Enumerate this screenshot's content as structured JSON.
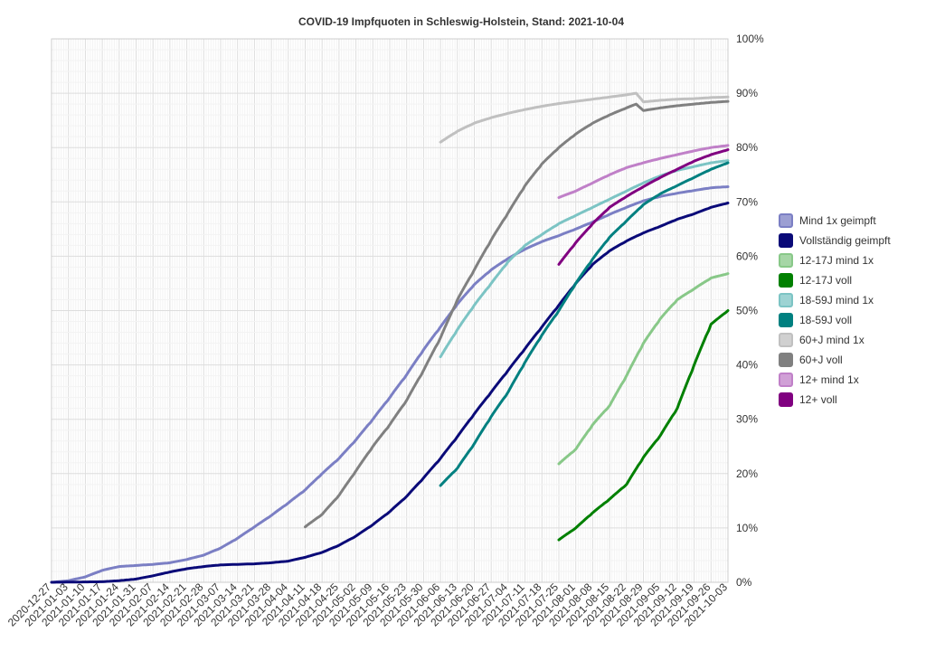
{
  "chart_data": {
    "type": "line",
    "title": "COVID-19 Impfquoten in Schleswig-Holstein, Stand: 2021-10-04",
    "x_start": "2020-12-27",
    "x_end": "2021-10-03",
    "x_ticks": [
      "2020-12-27",
      "2021-01-03",
      "2021-01-10",
      "2021-01-17",
      "2021-01-24",
      "2021-01-31",
      "2021-02-07",
      "2021-02-14",
      "2021-02-21",
      "2021-02-28",
      "2021-03-07",
      "2021-03-14",
      "2021-03-21",
      "2021-03-28",
      "2021-04-04",
      "2021-04-11",
      "2021-04-18",
      "2021-04-25",
      "2021-05-02",
      "2021-05-09",
      "2021-05-16",
      "2021-05-23",
      "2021-05-30",
      "2021-06-06",
      "2021-06-13",
      "2021-06-20",
      "2021-06-27",
      "2021-07-04",
      "2021-07-11",
      "2021-07-18",
      "2021-07-25",
      "2021-08-01",
      "2021-08-08",
      "2021-08-15",
      "2021-08-22",
      "2021-08-29",
      "2021-09-05",
      "2021-09-12",
      "2021-09-19",
      "2021-09-26",
      "2021-10-03"
    ],
    "y_ticks": [
      "0%",
      "10%",
      "20%",
      "30%",
      "40%",
      "50%",
      "60%",
      "70%",
      "80%",
      "90%",
      "100%"
    ],
    "ylim": [
      0,
      100
    ],
    "y_unit": "%",
    "grid": true,
    "legend_position": "right",
    "series": [
      {
        "name": "Mind 1x geimpft",
        "color": "#7b7fc4",
        "points": [
          [
            "2020-12-27",
            0
          ],
          [
            "2021-01-03",
            0.3
          ],
          [
            "2021-01-10",
            1.0
          ],
          [
            "2021-01-17",
            2.2
          ],
          [
            "2021-01-24",
            2.9
          ],
          [
            "2021-01-31",
            3.1
          ],
          [
            "2021-02-07",
            3.3
          ],
          [
            "2021-02-14",
            3.6
          ],
          [
            "2021-02-21",
            4.2
          ],
          [
            "2021-02-28",
            5.0
          ],
          [
            "2021-03-07",
            6.3
          ],
          [
            "2021-03-14",
            8.1
          ],
          [
            "2021-03-21",
            10.2
          ],
          [
            "2021-03-28",
            12.3
          ],
          [
            "2021-04-04",
            14.6
          ],
          [
            "2021-04-11",
            17.0
          ],
          [
            "2021-04-18",
            20.0
          ],
          [
            "2021-04-25",
            22.8
          ],
          [
            "2021-05-02",
            26.2
          ],
          [
            "2021-05-09",
            30.0
          ],
          [
            "2021-05-16",
            34.0
          ],
          [
            "2021-05-23",
            38.2
          ],
          [
            "2021-05-30",
            42.8
          ],
          [
            "2021-06-06",
            47.0
          ],
          [
            "2021-06-13",
            51.2
          ],
          [
            "2021-06-20",
            54.8
          ],
          [
            "2021-06-27",
            57.5
          ],
          [
            "2021-07-04",
            59.6
          ],
          [
            "2021-07-11",
            61.3
          ],
          [
            "2021-07-18",
            62.7
          ],
          [
            "2021-07-25",
            63.8
          ],
          [
            "2021-08-01",
            65.0
          ],
          [
            "2021-08-08",
            66.3
          ],
          [
            "2021-08-15",
            67.7
          ],
          [
            "2021-08-22",
            69.0
          ],
          [
            "2021-08-29",
            70.2
          ],
          [
            "2021-09-05",
            71.0
          ],
          [
            "2021-09-12",
            71.6
          ],
          [
            "2021-09-19",
            72.1
          ],
          [
            "2021-09-26",
            72.6
          ],
          [
            "2021-10-03",
            72.8
          ]
        ]
      },
      {
        "name": "Vollständig geimpft",
        "color": "#0a0a78",
        "points": [
          [
            "2020-12-27",
            0
          ],
          [
            "2021-01-17",
            0.1
          ],
          [
            "2021-01-24",
            0.3
          ],
          [
            "2021-01-31",
            0.6
          ],
          [
            "2021-02-07",
            1.2
          ],
          [
            "2021-02-14",
            1.9
          ],
          [
            "2021-02-21",
            2.5
          ],
          [
            "2021-02-28",
            2.9
          ],
          [
            "2021-03-07",
            3.2
          ],
          [
            "2021-03-14",
            3.3
          ],
          [
            "2021-03-21",
            3.4
          ],
          [
            "2021-03-28",
            3.6
          ],
          [
            "2021-04-04",
            3.9
          ],
          [
            "2021-04-11",
            4.6
          ],
          [
            "2021-04-18",
            5.5
          ],
          [
            "2021-04-25",
            6.8
          ],
          [
            "2021-05-02",
            8.5
          ],
          [
            "2021-05-09",
            10.6
          ],
          [
            "2021-05-16",
            13.0
          ],
          [
            "2021-05-23",
            15.8
          ],
          [
            "2021-05-30",
            19.2
          ],
          [
            "2021-06-06",
            22.8
          ],
          [
            "2021-06-13",
            26.8
          ],
          [
            "2021-06-20",
            31.0
          ],
          [
            "2021-06-27",
            35.0
          ],
          [
            "2021-07-04",
            39.0
          ],
          [
            "2021-07-11",
            43.0
          ],
          [
            "2021-07-18",
            47.0
          ],
          [
            "2021-07-25",
            51.0
          ],
          [
            "2021-08-01",
            55.0
          ],
          [
            "2021-08-08",
            58.5
          ],
          [
            "2021-08-15",
            61.0
          ],
          [
            "2021-08-22",
            62.8
          ],
          [
            "2021-08-29",
            64.3
          ],
          [
            "2021-09-05",
            65.5
          ],
          [
            "2021-09-12",
            66.8
          ],
          [
            "2021-09-19",
            67.8
          ],
          [
            "2021-09-26",
            69.0
          ],
          [
            "2021-10-03",
            69.8
          ]
        ]
      },
      {
        "name": "12-17J mind 1x",
        "color": "#88c888",
        "points": [
          [
            "2021-07-25",
            21.8
          ],
          [
            "2021-08-01",
            24.5
          ],
          [
            "2021-08-08",
            29.0
          ],
          [
            "2021-08-15",
            32.5
          ],
          [
            "2021-08-22",
            38.0
          ],
          [
            "2021-08-29",
            44.0
          ],
          [
            "2021-09-05",
            48.5
          ],
          [
            "2021-09-12",
            52.0
          ],
          [
            "2021-09-19",
            54.0
          ],
          [
            "2021-09-26",
            56.0
          ],
          [
            "2021-10-03",
            56.8
          ]
        ]
      },
      {
        "name": "12-17J voll",
        "color": "#008000",
        "points": [
          [
            "2021-07-25",
            7.8
          ],
          [
            "2021-08-01",
            10.0
          ],
          [
            "2021-08-08",
            12.8
          ],
          [
            "2021-08-15",
            15.3
          ],
          [
            "2021-08-22",
            18.0
          ],
          [
            "2021-08-29",
            23.0
          ],
          [
            "2021-09-05",
            27.0
          ],
          [
            "2021-09-12",
            32.0
          ],
          [
            "2021-09-19",
            40.0
          ],
          [
            "2021-09-26",
            47.5
          ],
          [
            "2021-10-03",
            50.0
          ]
        ]
      },
      {
        "name": "18-59J mind 1x",
        "color": "#7cc4c4",
        "points": [
          [
            "2021-06-06",
            41.5
          ],
          [
            "2021-06-13",
            46.5
          ],
          [
            "2021-06-20",
            51.0
          ],
          [
            "2021-06-27",
            55.0
          ],
          [
            "2021-07-04",
            59.0
          ],
          [
            "2021-07-11",
            62.0
          ],
          [
            "2021-07-18",
            64.0
          ],
          [
            "2021-07-25",
            66.0
          ],
          [
            "2021-08-01",
            67.5
          ],
          [
            "2021-08-08",
            69.0
          ],
          [
            "2021-08-15",
            70.5
          ],
          [
            "2021-08-22",
            72.0
          ],
          [
            "2021-08-29",
            73.5
          ],
          [
            "2021-09-05",
            74.8
          ],
          [
            "2021-09-12",
            75.8
          ],
          [
            "2021-09-19",
            76.5
          ],
          [
            "2021-09-26",
            77.2
          ],
          [
            "2021-10-03",
            77.6
          ]
        ]
      },
      {
        "name": "18-59J voll",
        "color": "#008080",
        "points": [
          [
            "2021-06-06",
            17.8
          ],
          [
            "2021-06-13",
            21.0
          ],
          [
            "2021-06-20",
            25.5
          ],
          [
            "2021-06-27",
            30.5
          ],
          [
            "2021-07-04",
            35.0
          ],
          [
            "2021-07-11",
            40.5
          ],
          [
            "2021-07-18",
            45.5
          ],
          [
            "2021-07-25",
            50.0
          ],
          [
            "2021-08-01",
            55.0
          ],
          [
            "2021-08-08",
            59.5
          ],
          [
            "2021-08-15",
            63.5
          ],
          [
            "2021-08-22",
            66.5
          ],
          [
            "2021-08-29",
            69.5
          ],
          [
            "2021-09-05",
            71.5
          ],
          [
            "2021-09-12",
            73.0
          ],
          [
            "2021-09-19",
            74.5
          ],
          [
            "2021-09-26",
            76.0
          ],
          [
            "2021-10-03",
            77.2
          ]
        ]
      },
      {
        "name": "60+J mind 1x",
        "color": "#c0c0c0",
        "points": [
          [
            "2021-06-06",
            81.0
          ],
          [
            "2021-06-13",
            83.0
          ],
          [
            "2021-06-20",
            84.5
          ],
          [
            "2021-06-27",
            85.5
          ],
          [
            "2021-07-04",
            86.3
          ],
          [
            "2021-07-11",
            87.0
          ],
          [
            "2021-07-18",
            87.6
          ],
          [
            "2021-07-25",
            88.1
          ],
          [
            "2021-08-01",
            88.5
          ],
          [
            "2021-08-08",
            88.9
          ],
          [
            "2021-08-15",
            89.3
          ],
          [
            "2021-08-22",
            89.7
          ],
          [
            "2021-08-26",
            90.0
          ],
          [
            "2021-08-29",
            88.4
          ],
          [
            "2021-09-05",
            88.7
          ],
          [
            "2021-09-12",
            88.9
          ],
          [
            "2021-09-19",
            89.0
          ],
          [
            "2021-09-26",
            89.2
          ],
          [
            "2021-10-03",
            89.3
          ]
        ]
      },
      {
        "name": "60+J voll",
        "color": "#808080",
        "points": [
          [
            "2021-04-11",
            10.2
          ],
          [
            "2021-04-18",
            12.5
          ],
          [
            "2021-04-25",
            16.0
          ],
          [
            "2021-05-02",
            20.5
          ],
          [
            "2021-05-09",
            25.0
          ],
          [
            "2021-05-16",
            29.0
          ],
          [
            "2021-05-23",
            33.5
          ],
          [
            "2021-05-30",
            39.0
          ],
          [
            "2021-06-06",
            45.0
          ],
          [
            "2021-06-13",
            52.0
          ],
          [
            "2021-06-20",
            57.5
          ],
          [
            "2021-06-27",
            63.0
          ],
          [
            "2021-07-04",
            68.0
          ],
          [
            "2021-07-11",
            73.0
          ],
          [
            "2021-07-18",
            77.0
          ],
          [
            "2021-07-25",
            80.0
          ],
          [
            "2021-08-01",
            82.5
          ],
          [
            "2021-08-08",
            84.5
          ],
          [
            "2021-08-15",
            86.0
          ],
          [
            "2021-08-22",
            87.3
          ],
          [
            "2021-08-26",
            88.0
          ],
          [
            "2021-08-29",
            86.8
          ],
          [
            "2021-09-05",
            87.3
          ],
          [
            "2021-09-12",
            87.7
          ],
          [
            "2021-09-19",
            88.0
          ],
          [
            "2021-09-26",
            88.3
          ],
          [
            "2021-10-03",
            88.5
          ]
        ]
      },
      {
        "name": "12+ mind 1x",
        "color": "#c080c8",
        "points": [
          [
            "2021-07-25",
            70.8
          ],
          [
            "2021-08-01",
            72.0
          ],
          [
            "2021-08-08",
            73.5
          ],
          [
            "2021-08-15",
            75.0
          ],
          [
            "2021-08-22",
            76.3
          ],
          [
            "2021-08-29",
            77.2
          ],
          [
            "2021-09-05",
            78.0
          ],
          [
            "2021-09-12",
            78.7
          ],
          [
            "2021-09-19",
            79.4
          ],
          [
            "2021-09-26",
            80.0
          ],
          [
            "2021-10-03",
            80.4
          ]
        ]
      },
      {
        "name": "12+ voll",
        "color": "#800080",
        "points": [
          [
            "2021-07-25",
            58.5
          ],
          [
            "2021-08-01",
            62.5
          ],
          [
            "2021-08-08",
            66.0
          ],
          [
            "2021-08-15",
            69.0
          ],
          [
            "2021-08-22",
            71.0
          ],
          [
            "2021-08-29",
            72.8
          ],
          [
            "2021-09-05",
            74.5
          ],
          [
            "2021-09-12",
            76.0
          ],
          [
            "2021-09-19",
            77.5
          ],
          [
            "2021-09-26",
            78.7
          ],
          [
            "2021-10-03",
            79.6
          ]
        ]
      }
    ]
  }
}
